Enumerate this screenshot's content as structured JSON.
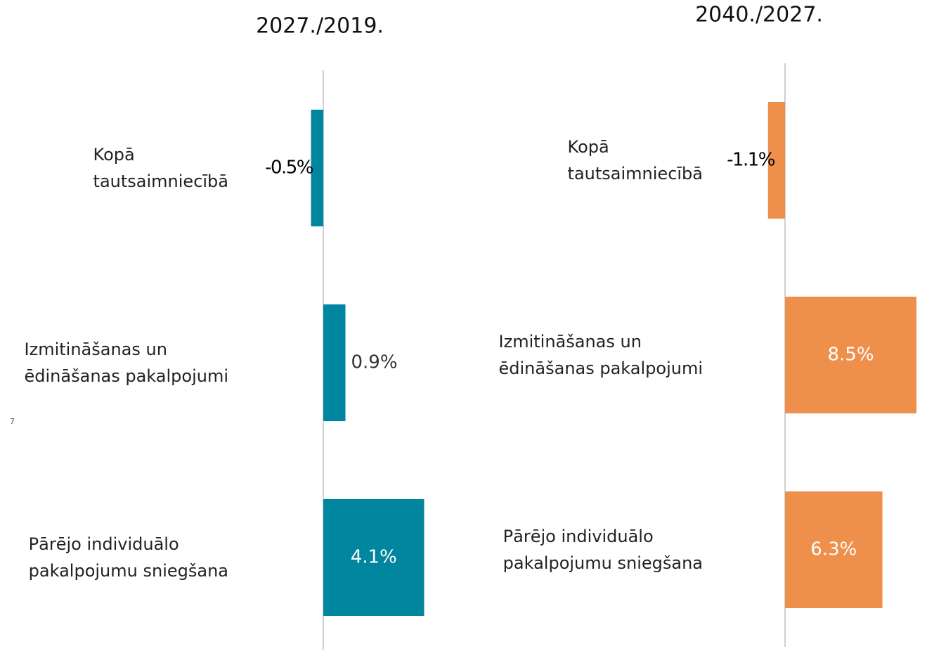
{
  "page_number": "7",
  "chart_data": [
    {
      "type": "barh",
      "title": "2027./2019.",
      "categories": [
        "Kopā\ntautsaimniecībā",
        "Izmitināšanas un\nēdināšanas pakalpojumi",
        "Pārējo individuālo\npakalpojumu sniegšana"
      ],
      "values": [
        -0.5,
        0.9,
        4.1
      ],
      "value_labels": [
        "-0.5%",
        "0.9%",
        "4.1%"
      ],
      "color": "#00869e",
      "xlim": [
        -1,
        5
      ]
    },
    {
      "type": "barh",
      "title": "2040./2027.",
      "categories": [
        "Kopā\ntautsaimniecībā",
        "Izmitināšanas un\nēdināšanas pakalpojumi",
        "Pārējo individuālo\npakalpojumu sniegšana"
      ],
      "values": [
        -1.1,
        8.5,
        6.3
      ],
      "value_labels": [
        "-1.1%",
        "8.5%",
        "6.3%"
      ],
      "color": "#ef8f4c",
      "xlim": [
        -2,
        9
      ]
    }
  ]
}
